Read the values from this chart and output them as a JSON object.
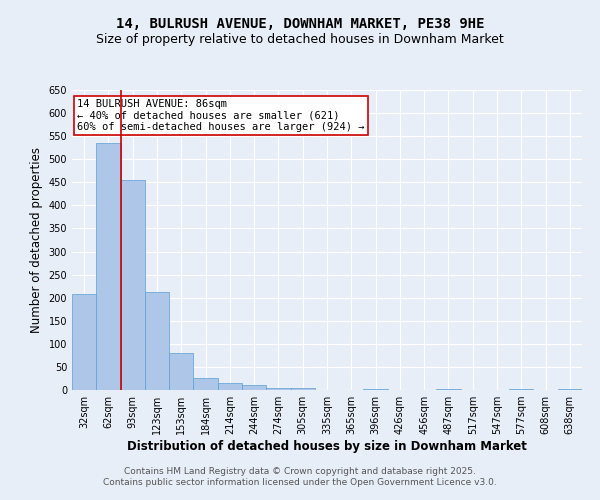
{
  "title1": "14, BULRUSH AVENUE, DOWNHAM MARKET, PE38 9HE",
  "title2": "Size of property relative to detached houses in Downham Market",
  "xlabel": "Distribution of detached houses by size in Downham Market",
  "ylabel": "Number of detached properties",
  "bin_labels": [
    "32sqm",
    "62sqm",
    "93sqm",
    "123sqm",
    "153sqm",
    "184sqm",
    "214sqm",
    "244sqm",
    "274sqm",
    "305sqm",
    "335sqm",
    "365sqm",
    "396sqm",
    "426sqm",
    "456sqm",
    "487sqm",
    "517sqm",
    "547sqm",
    "577sqm",
    "608sqm",
    "638sqm"
  ],
  "bar_values": [
    208,
    535,
    455,
    212,
    80,
    25,
    15,
    10,
    5,
    5,
    0,
    0,
    2,
    0,
    0,
    2,
    0,
    0,
    2,
    0,
    3
  ],
  "bar_color": "#aec6e8",
  "bar_edge_color": "#5a9fd4",
  "vline_color": "#cc0000",
  "annotation_text": "14 BULRUSH AVENUE: 86sqm\n← 40% of detached houses are smaller (621)\n60% of semi-detached houses are larger (924) →",
  "annotation_box_color": "#ffffff",
  "annotation_box_edge": "#cc0000",
  "ylim": [
    0,
    650
  ],
  "yticks": [
    0,
    50,
    100,
    150,
    200,
    250,
    300,
    350,
    400,
    450,
    500,
    550,
    600,
    650
  ],
  "background_color": "#e8eef8",
  "plot_bg_color": "#e8eef8",
  "footer1": "Contains HM Land Registry data © Crown copyright and database right 2025.",
  "footer2": "Contains public sector information licensed under the Open Government Licence v3.0.",
  "title_fontsize": 10,
  "subtitle_fontsize": 9,
  "axis_label_fontsize": 8.5,
  "tick_fontsize": 7,
  "annotation_fontsize": 7.5,
  "footer_fontsize": 6.5
}
